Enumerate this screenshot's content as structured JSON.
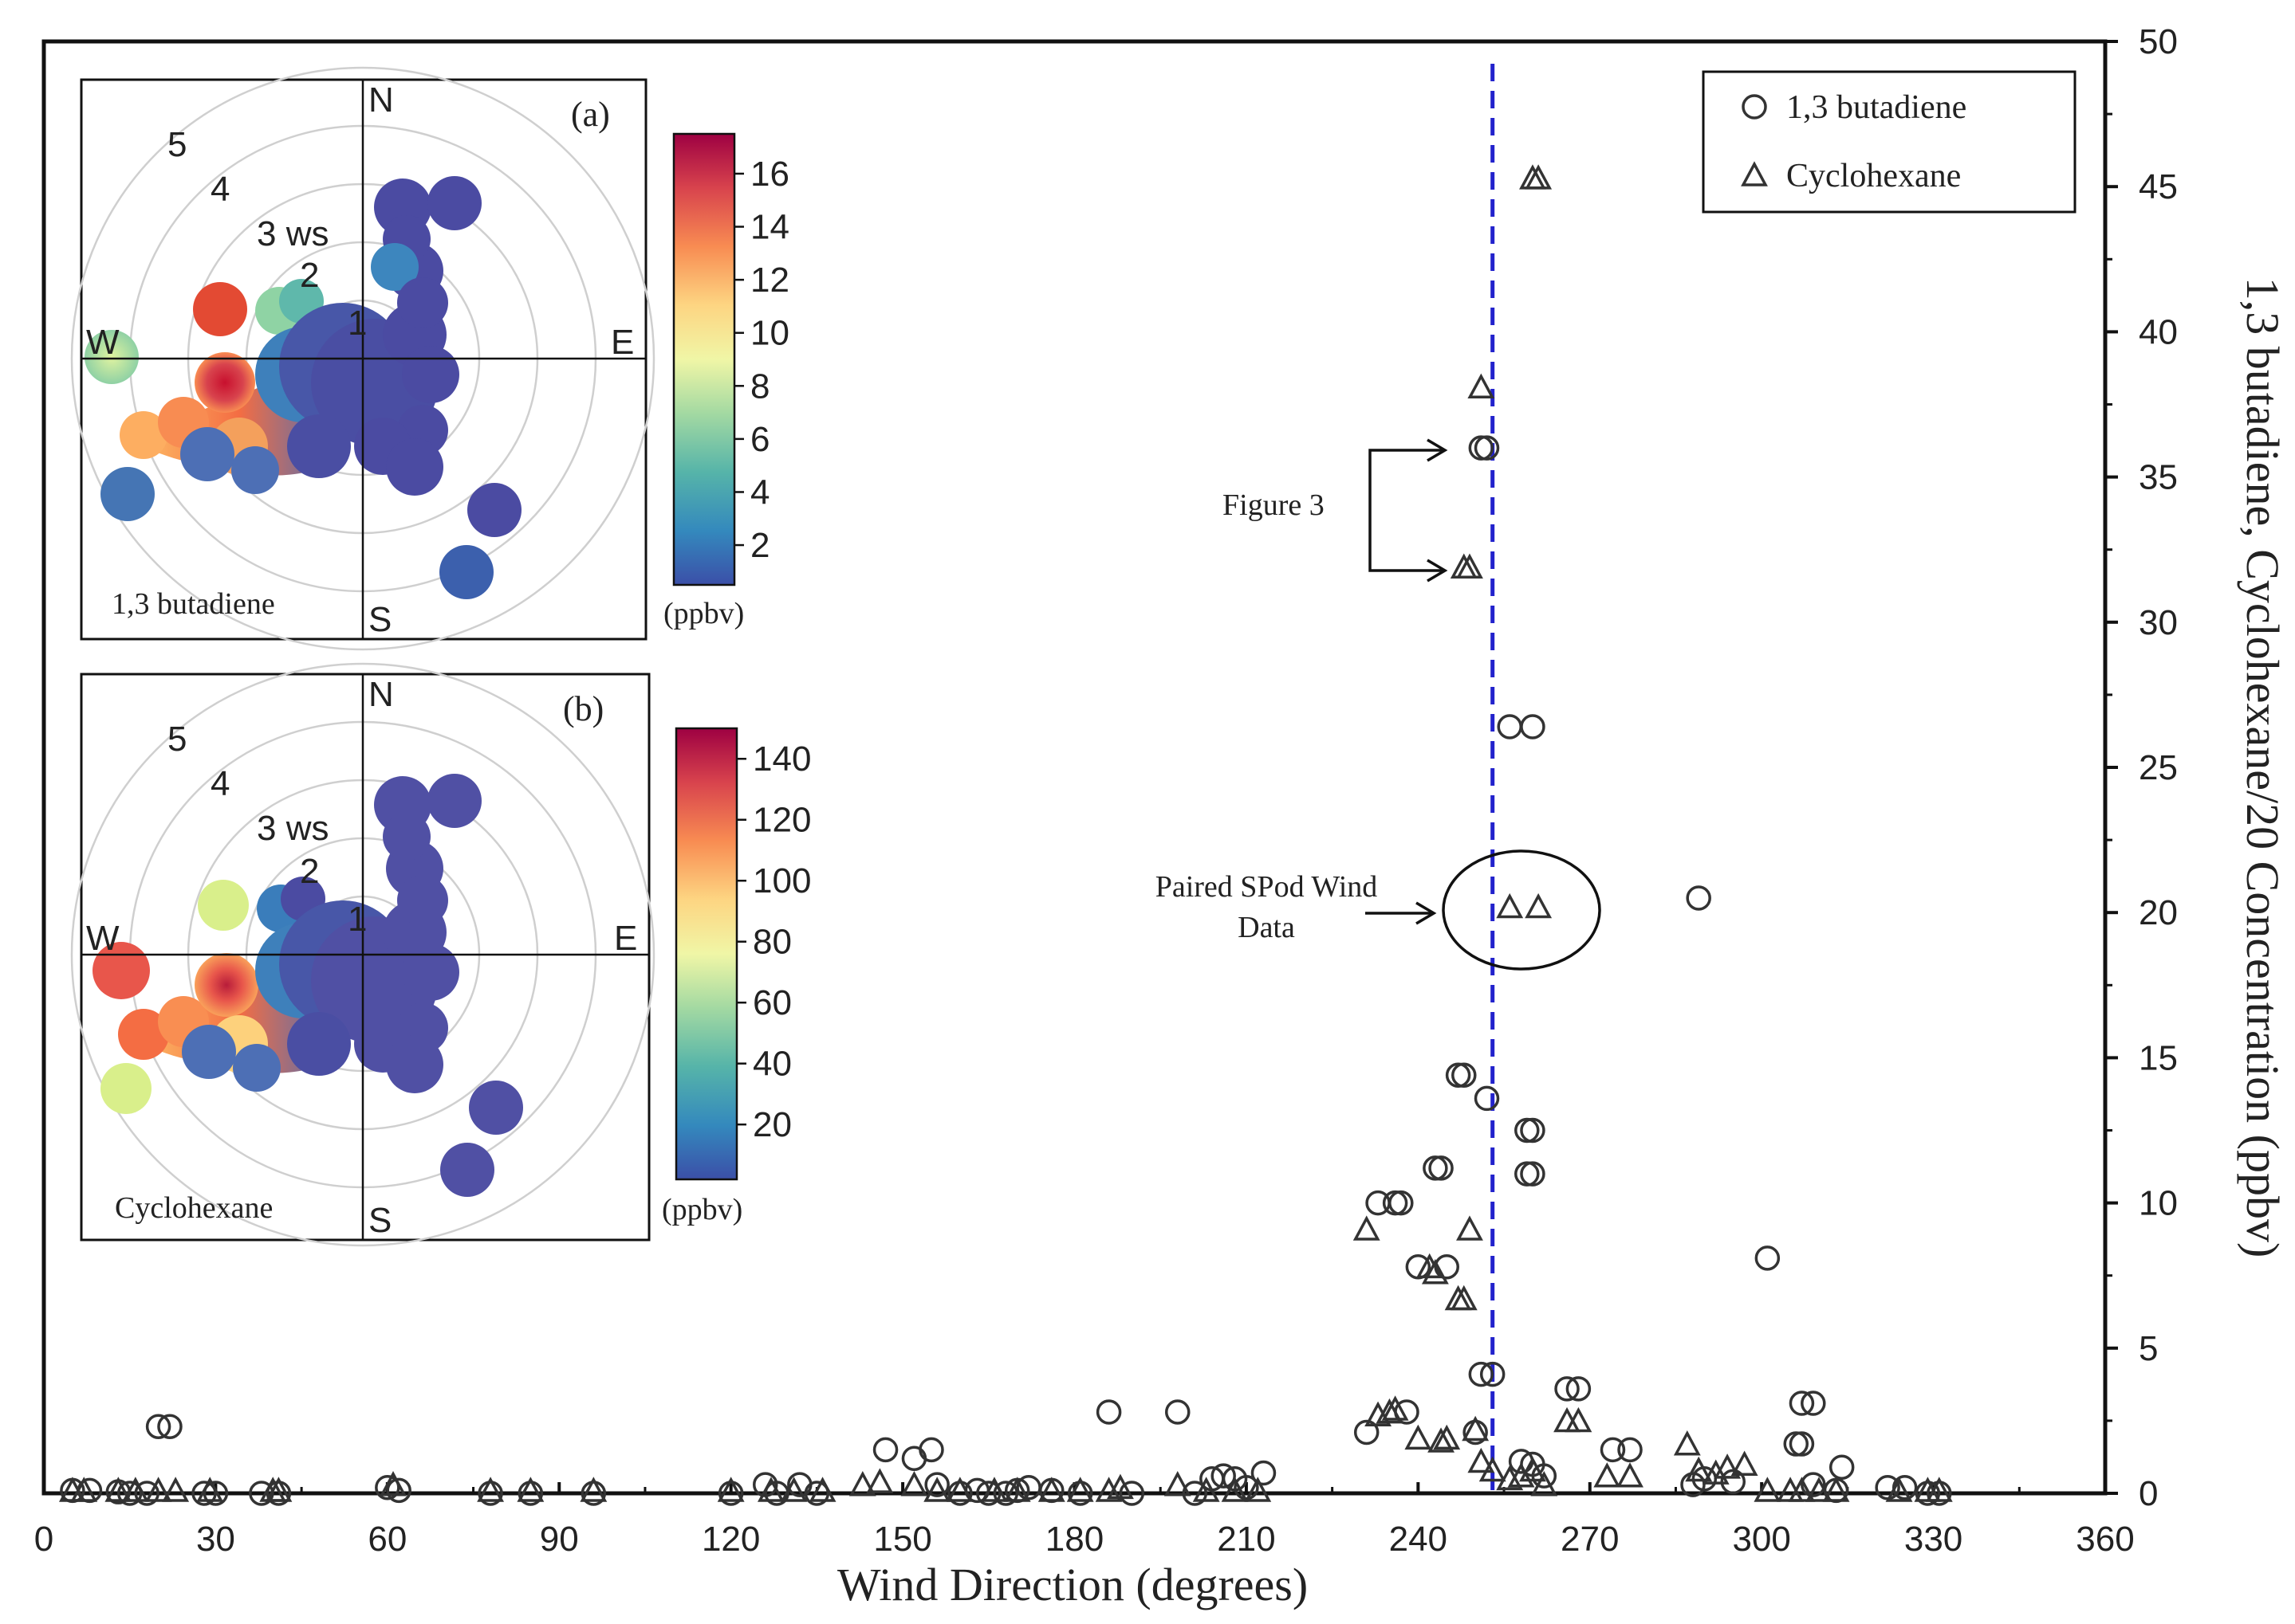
{
  "chart_data": {
    "type": "scatter",
    "xlabel": "Wind Direction (degrees)",
    "ylabel": "1,3 butadiene, Cyclohexane/20 Concentration (ppbv)",
    "xlim": [
      0,
      360
    ],
    "ylim": [
      0,
      50
    ],
    "xticks": [
      "0",
      "30",
      "60",
      "90",
      "120",
      "150",
      "180",
      "210",
      "240",
      "270",
      "300",
      "330",
      "360"
    ],
    "yticks": [
      "0",
      "5",
      "10",
      "15",
      "20",
      "25",
      "30",
      "35",
      "40",
      "45",
      "50"
    ],
    "grid": false,
    "legend": {
      "position": "top-right",
      "entries": [
        {
          "name": "1,3 butadiene",
          "marker": "circle"
        },
        {
          "name": "Cyclohexane",
          "marker": "triangle"
        }
      ]
    },
    "vertical_line": {
      "x": 253,
      "color": "#2222cc",
      "style": "dashed"
    },
    "annotations": {
      "figure3": "Figure 3",
      "paired_line1": "Paired SPod Wind",
      "paired_line2": "Data"
    },
    "series": [
      {
        "name": "1,3 butadiene",
        "marker": "circle",
        "points": [
          [
            5,
            0.1
          ],
          [
            8,
            0.1
          ],
          [
            13,
            0.05
          ],
          [
            15,
            0
          ],
          [
            18,
            0
          ],
          [
            20,
            2.3
          ],
          [
            22,
            2.3
          ],
          [
            28,
            0
          ],
          [
            30,
            0
          ],
          [
            38,
            0
          ],
          [
            41,
            0
          ],
          [
            60,
            0.2
          ],
          [
            62,
            0.1
          ],
          [
            78,
            0
          ],
          [
            85,
            0
          ],
          [
            96,
            0
          ],
          [
            120,
            0
          ],
          [
            126,
            0.3
          ],
          [
            128,
            0
          ],
          [
            132,
            0.3
          ],
          [
            135,
            0
          ],
          [
            147,
            1.5
          ],
          [
            152,
            1.2
          ],
          [
            155,
            1.5
          ],
          [
            156,
            0.3
          ],
          [
            160,
            0
          ],
          [
            163,
            0.1
          ],
          [
            165,
            0
          ],
          [
            168,
            0
          ],
          [
            170,
            0.1
          ],
          [
            172,
            0.2
          ],
          [
            176,
            0.1
          ],
          [
            181,
            0
          ],
          [
            186,
            2.8
          ],
          [
            190,
            0
          ],
          [
            198,
            2.8
          ],
          [
            201,
            0
          ],
          [
            204,
            0.5
          ],
          [
            206,
            0.6
          ],
          [
            208,
            0.5
          ],
          [
            210,
            0.2
          ],
          [
            213,
            0.7
          ],
          [
            231,
            2.1
          ],
          [
            233,
            10
          ],
          [
            236,
            10
          ],
          [
            237,
            10
          ],
          [
            238,
            2.8
          ],
          [
            240,
            7.8
          ],
          [
            243,
            11.2
          ],
          [
            244,
            11.2
          ],
          [
            245,
            7.8
          ],
          [
            247,
            14.4
          ],
          [
            248,
            14.4
          ],
          [
            250,
            2.1
          ],
          [
            251,
            4.1
          ],
          [
            252,
            13.6
          ],
          [
            253,
            4.1
          ],
          [
            251,
            36
          ],
          [
            252,
            36
          ],
          [
            256,
            26.4
          ],
          [
            260,
            26.4
          ],
          [
            259,
            12.5
          ],
          [
            260,
            12.5
          ],
          [
            259,
            11
          ],
          [
            260,
            11
          ],
          [
            258,
            1.1
          ],
          [
            260,
            1
          ],
          [
            262,
            0.6
          ],
          [
            266,
            3.6
          ],
          [
            268,
            3.6
          ],
          [
            274,
            1.5
          ],
          [
            277,
            1.5
          ],
          [
            289,
            20.5
          ],
          [
            288,
            0.3
          ],
          [
            290,
            0.5
          ],
          [
            295,
            0.4
          ],
          [
            301,
            8.1
          ],
          [
            306,
            1.7
          ],
          [
            307,
            1.7
          ],
          [
            307,
            3.1
          ],
          [
            309,
            3.1
          ],
          [
            309,
            0.3
          ],
          [
            313,
            0.1
          ],
          [
            314,
            0.9
          ],
          [
            322,
            0.2
          ],
          [
            325,
            0.2
          ],
          [
            329,
            0
          ],
          [
            331,
            0
          ]
        ]
      },
      {
        "name": "Cyclohexane",
        "marker": "triangle",
        "points": [
          [
            5,
            0
          ],
          [
            7,
            0
          ],
          [
            13,
            0
          ],
          [
            16,
            0
          ],
          [
            20,
            0
          ],
          [
            23,
            0
          ],
          [
            29,
            0
          ],
          [
            40,
            0
          ],
          [
            41,
            0
          ],
          [
            61,
            0.2
          ],
          [
            78,
            0
          ],
          [
            85,
            0
          ],
          [
            96,
            0
          ],
          [
            120,
            0
          ],
          [
            127,
            0
          ],
          [
            131,
            0
          ],
          [
            136,
            0
          ],
          [
            143,
            0.2
          ],
          [
            146,
            0.3
          ],
          [
            152,
            0.2
          ],
          [
            156,
            0
          ],
          [
            160,
            0
          ],
          [
            166,
            0
          ],
          [
            170,
            0
          ],
          [
            176,
            0
          ],
          [
            181,
            0
          ],
          [
            186,
            0
          ],
          [
            188,
            0.1
          ],
          [
            198,
            0.2
          ],
          [
            203,
            0
          ],
          [
            208,
            0
          ],
          [
            212,
            0
          ],
          [
            231,
            9
          ],
          [
            233,
            2.6
          ],
          [
            235,
            2.7
          ],
          [
            236,
            2.8
          ],
          [
            240,
            1.8
          ],
          [
            242,
            7.7
          ],
          [
            243,
            7.5
          ],
          [
            244,
            1.7
          ],
          [
            245,
            1.8
          ],
          [
            247,
            6.6
          ],
          [
            248,
            6.6
          ],
          [
            249,
            9
          ],
          [
            250,
            2.1
          ],
          [
            251,
            1
          ],
          [
            253,
            0.7
          ],
          [
            256,
            0.4
          ],
          [
            248,
            31.8
          ],
          [
            249,
            31.8
          ],
          [
            251,
            38
          ],
          [
            260,
            45.2
          ],
          [
            261,
            45.2
          ],
          [
            256,
            20.1
          ],
          [
            261,
            20.1
          ],
          [
            258,
            0.5
          ],
          [
            260,
            0.7
          ],
          [
            262,
            0.2
          ],
          [
            266,
            2.4
          ],
          [
            268,
            2.4
          ],
          [
            273,
            0.5
          ],
          [
            277,
            0.5
          ],
          [
            287,
            1.6
          ],
          [
            289,
            0.7
          ],
          [
            292,
            0.6
          ],
          [
            294,
            0.8
          ],
          [
            297,
            0.9
          ],
          [
            301,
            0
          ],
          [
            305,
            0
          ],
          [
            307,
            0
          ],
          [
            310,
            0
          ],
          [
            313,
            0
          ],
          [
            324,
            0
          ],
          [
            329,
            0
          ],
          [
            331,
            0
          ]
        ]
      }
    ],
    "insets": [
      {
        "id": "a",
        "panel_label": "(a)",
        "title": "1,3 butadiene",
        "unit": "(ppbv)",
        "colorbar_ticks": [
          "2",
          "4",
          "6",
          "8",
          "10",
          "12",
          "14",
          "16"
        ],
        "colorbar_range": [
          0.5,
          17.5
        ],
        "ring_labels": [
          "1",
          "2",
          "3 ws",
          "4",
          "5"
        ],
        "directions": [
          "N",
          "E",
          "S",
          "W"
        ]
      },
      {
        "id": "b",
        "panel_label": "(b)",
        "title": "Cyclohexane",
        "unit": "(ppbv)",
        "colorbar_ticks": [
          "20",
          "40",
          "60",
          "80",
          "100",
          "120",
          "140"
        ],
        "colorbar_range": [
          2,
          150
        ],
        "ring_labels": [
          "1",
          "2",
          "3 ws",
          "4",
          "5"
        ],
        "directions": [
          "N",
          "E",
          "S",
          "W"
        ]
      }
    ]
  }
}
